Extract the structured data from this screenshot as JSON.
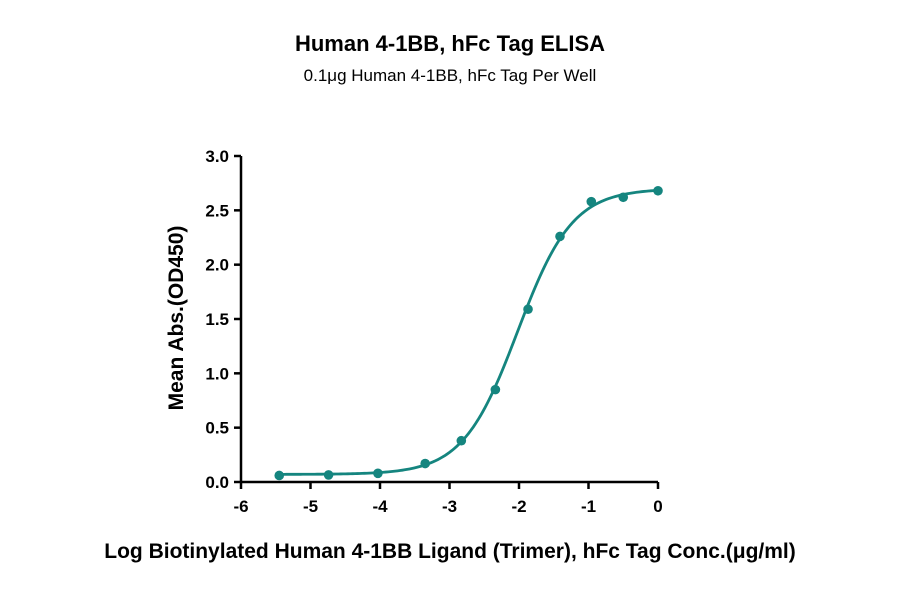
{
  "chart_data": {
    "type": "scatter",
    "title": "Human 4-1BB, hFc Tag ELISA",
    "subtitle": "0.1μg Human 4-1BB, hFc Tag Per Well",
    "xlabel": "Log Biotinylated Human 4-1BB Ligand (Trimer), hFc Tag Conc.(μg/ml)",
    "ylabel": "Mean Abs.(OD450)",
    "xlim": [
      -6,
      0
    ],
    "ylim": [
      0,
      3.0
    ],
    "x_ticks": [
      "-6",
      "-5",
      "-4",
      "-3",
      "-2",
      "-1",
      "0"
    ],
    "y_ticks": [
      "0.0",
      "0.5",
      "1.0",
      "1.5",
      "2.0",
      "2.5",
      "3.0"
    ],
    "x_tick_values": [
      -6,
      -5,
      -4,
      -3,
      -2,
      -1,
      0
    ],
    "y_tick_values": [
      0,
      0.5,
      1.0,
      1.5,
      2.0,
      2.5,
      3.0
    ],
    "grid": false,
    "color": "#15857f",
    "points": {
      "x": [
        -5.45,
        -4.74,
        -4.03,
        -3.35,
        -2.83,
        -2.34,
        -1.87,
        -1.41,
        -0.96,
        -0.5,
        0.0
      ],
      "y": [
        0.06,
        0.065,
        0.08,
        0.17,
        0.38,
        0.85,
        1.59,
        2.26,
        2.58,
        2.62,
        2.68
      ]
    },
    "fit_curve": {
      "model": "4PL",
      "bottom": 0.07,
      "top": 2.7,
      "logEC50": -2.02,
      "hill": 1.1
    }
  }
}
